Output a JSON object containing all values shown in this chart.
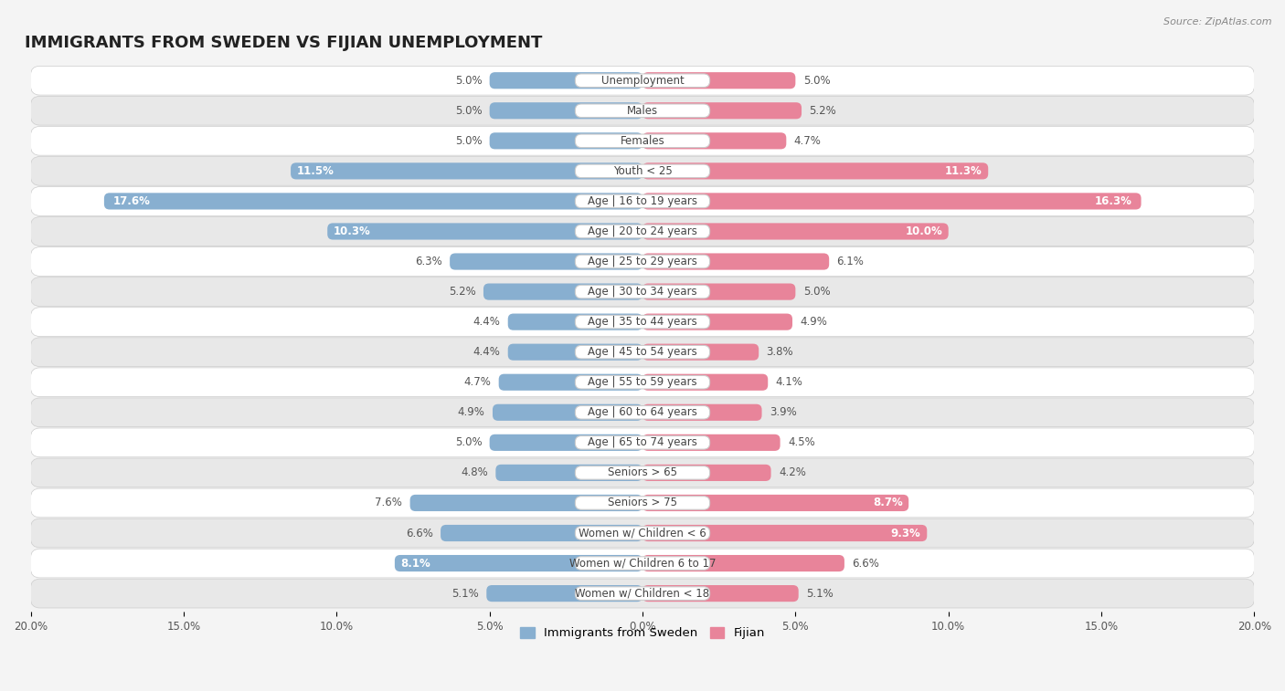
{
  "title": "IMMIGRANTS FROM SWEDEN VS FIJIAN UNEMPLOYMENT",
  "source": "Source: ZipAtlas.com",
  "categories": [
    "Unemployment",
    "Males",
    "Females",
    "Youth < 25",
    "Age | 16 to 19 years",
    "Age | 20 to 24 years",
    "Age | 25 to 29 years",
    "Age | 30 to 34 years",
    "Age | 35 to 44 years",
    "Age | 45 to 54 years",
    "Age | 55 to 59 years",
    "Age | 60 to 64 years",
    "Age | 65 to 74 years",
    "Seniors > 65",
    "Seniors > 75",
    "Women w/ Children < 6",
    "Women w/ Children 6 to 17",
    "Women w/ Children < 18"
  ],
  "sweden_values": [
    5.0,
    5.0,
    5.0,
    11.5,
    17.6,
    10.3,
    6.3,
    5.2,
    4.4,
    4.4,
    4.7,
    4.9,
    5.0,
    4.8,
    7.6,
    6.6,
    8.1,
    5.1
  ],
  "fijian_values": [
    5.0,
    5.2,
    4.7,
    11.3,
    16.3,
    10.0,
    6.1,
    5.0,
    4.9,
    3.8,
    4.1,
    3.9,
    4.5,
    4.2,
    8.7,
    9.3,
    6.6,
    5.1
  ],
  "sweden_color": "#88afd0",
  "fijian_color": "#e8849a",
  "sweden_label": "Immigrants from Sweden",
  "fijian_label": "Fijian",
  "background_color": "#f4f4f4",
  "row_color_white": "#ffffff",
  "row_color_gray": "#e8e8e8",
  "row_border_color": "#cccccc",
  "max_value": 20.0,
  "title_fontsize": 13,
  "label_fontsize": 8.5,
  "value_fontsize": 8.5
}
